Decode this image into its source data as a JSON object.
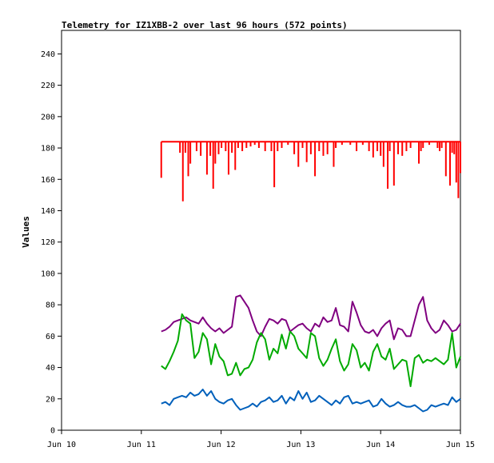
{
  "chart_data": {
    "type": "line",
    "title": "Telemetry for IZ1XBB-2 over last 96 hours (572 points)",
    "xlabel": "",
    "ylabel": "Values",
    "x_ticks": [
      "Jun 10",
      "Jun 11",
      "Jun 12",
      "Jun 13",
      "Jun 14",
      "Jun 15"
    ],
    "xlim": [
      0,
      96
    ],
    "y_ticks": [
      0,
      20,
      40,
      60,
      80,
      100,
      120,
      140,
      160,
      180,
      200,
      220,
      240
    ],
    "ylim": [
      0,
      255
    ],
    "grid": false,
    "legend": "none",
    "series": [
      {
        "color": "#ff0000",
        "style": "baseline-with-dips",
        "baseline": 184,
        "x_range": [
          24,
          96
        ],
        "dips": [
          [
            24.0,
            161
          ],
          [
            28.5,
            177
          ],
          [
            29.2,
            146
          ],
          [
            29.8,
            177
          ],
          [
            30.5,
            162
          ],
          [
            31.0,
            170
          ],
          [
            32.5,
            178
          ],
          [
            33.5,
            175
          ],
          [
            35.0,
            163
          ],
          [
            35.8,
            175
          ],
          [
            36.5,
            154
          ],
          [
            37.0,
            170
          ],
          [
            37.8,
            176
          ],
          [
            38.5,
            180
          ],
          [
            39.5,
            178
          ],
          [
            40.2,
            163
          ],
          [
            41.0,
            177
          ],
          [
            41.8,
            166
          ],
          [
            42.5,
            180
          ],
          [
            43.5,
            178
          ],
          [
            44.5,
            180
          ],
          [
            45.5,
            181
          ],
          [
            46.5,
            182
          ],
          [
            47.5,
            180
          ],
          [
            49.0,
            178
          ],
          [
            50.5,
            178
          ],
          [
            51.2,
            155
          ],
          [
            52.0,
            178
          ],
          [
            53.0,
            180
          ],
          [
            54.5,
            182
          ],
          [
            56.0,
            176
          ],
          [
            57.0,
            168
          ],
          [
            58.0,
            180
          ],
          [
            59.0,
            171
          ],
          [
            60.0,
            176
          ],
          [
            61.0,
            162
          ],
          [
            62.0,
            178
          ],
          [
            63.0,
            175
          ],
          [
            64.0,
            176
          ],
          [
            65.5,
            168
          ],
          [
            66.0,
            180
          ],
          [
            67.5,
            182
          ],
          [
            69.5,
            182
          ],
          [
            71.0,
            178
          ],
          [
            72.5,
            182
          ],
          [
            74.0,
            178
          ],
          [
            75.0,
            174
          ],
          [
            76.0,
            178
          ],
          [
            76.8,
            175
          ],
          [
            77.5,
            168
          ],
          [
            78.5,
            154
          ],
          [
            79.0,
            178
          ],
          [
            80.0,
            156
          ],
          [
            81.0,
            176
          ],
          [
            82.0,
            175
          ],
          [
            83.0,
            178
          ],
          [
            84.0,
            180
          ],
          [
            86.0,
            170
          ],
          [
            86.5,
            178
          ],
          [
            87.0,
            180
          ],
          [
            88.5,
            182
          ],
          [
            90.5,
            180
          ],
          [
            91.0,
            178
          ],
          [
            91.5,
            180
          ],
          [
            92.5,
            162
          ],
          [
            93.5,
            156
          ],
          [
            94.0,
            177
          ],
          [
            94.5,
            176
          ],
          [
            95.0,
            158
          ],
          [
            95.5,
            148
          ],
          [
            96.0,
            164
          ]
        ]
      },
      {
        "color": "#800080",
        "x": [
          24,
          25,
          26,
          27,
          28,
          29,
          30,
          31,
          32,
          33,
          34,
          35,
          36,
          37,
          38,
          39,
          40,
          41,
          42,
          43,
          44,
          45,
          46,
          47,
          48,
          49,
          50,
          51,
          52,
          53,
          54,
          55,
          56,
          57,
          58,
          59,
          60,
          61,
          62,
          63,
          64,
          65,
          66,
          67,
          68,
          69,
          70,
          71,
          72,
          73,
          74,
          75,
          76,
          77,
          78,
          79,
          80,
          81,
          82,
          83,
          84,
          85,
          86,
          87,
          88,
          89,
          90,
          91,
          92,
          93,
          94,
          95,
          96
        ],
        "values": [
          63,
          64,
          66,
          69,
          70,
          71,
          72,
          70,
          69,
          68,
          72,
          68,
          65,
          63,
          65,
          62,
          64,
          66,
          85,
          86,
          82,
          78,
          70,
          63,
          60,
          66,
          71,
          70,
          68,
          71,
          70,
          63,
          65,
          67,
          68,
          65,
          63,
          68,
          66,
          72,
          69,
          70,
          78,
          67,
          66,
          63,
          82,
          75,
          67,
          63,
          62,
          64,
          60,
          65,
          68,
          70,
          58,
          65,
          64,
          60,
          60,
          70,
          80,
          85,
          70,
          65,
          62,
          64,
          70,
          67,
          63,
          64,
          68
        ]
      },
      {
        "color": "#00aa00",
        "x": [
          24,
          25,
          26,
          27,
          28,
          29,
          30,
          31,
          32,
          33,
          34,
          35,
          36,
          37,
          38,
          39,
          40,
          41,
          42,
          43,
          44,
          45,
          46,
          47,
          48,
          49,
          50,
          51,
          52,
          53,
          54,
          55,
          56,
          57,
          58,
          59,
          60,
          61,
          62,
          63,
          64,
          65,
          66,
          67,
          68,
          69,
          70,
          71,
          72,
          73,
          74,
          75,
          76,
          77,
          78,
          79,
          80,
          81,
          82,
          83,
          84,
          85,
          86,
          87,
          88,
          89,
          90,
          91,
          92,
          93,
          94,
          95,
          96
        ],
        "values": [
          41,
          39,
          44,
          50,
          57,
          74,
          70,
          68,
          46,
          50,
          62,
          58,
          42,
          55,
          47,
          44,
          35,
          36,
          43,
          35,
          39,
          40,
          45,
          56,
          62,
          58,
          45,
          52,
          49,
          61,
          52,
          63,
          60,
          52,
          49,
          46,
          62,
          60,
          46,
          41,
          45,
          52,
          58,
          44,
          38,
          42,
          55,
          51,
          40,
          43,
          38,
          50,
          55,
          47,
          45,
          52,
          39,
          42,
          45,
          44,
          28,
          46,
          48,
          43,
          45,
          44,
          46,
          44,
          42,
          45,
          62,
          40,
          47
        ]
      },
      {
        "color": "#0060bb",
        "x": [
          24,
          25,
          26,
          27,
          28,
          29,
          30,
          31,
          32,
          33,
          34,
          35,
          36,
          37,
          38,
          39,
          40,
          41,
          42,
          43,
          44,
          45,
          46,
          47,
          48,
          49,
          50,
          51,
          52,
          53,
          54,
          55,
          56,
          57,
          58,
          59,
          60,
          61,
          62,
          63,
          64,
          65,
          66,
          67,
          68,
          69,
          70,
          71,
          72,
          73,
          74,
          75,
          76,
          77,
          78,
          79,
          80,
          81,
          82,
          83,
          84,
          85,
          86,
          87,
          88,
          89,
          90,
          91,
          92,
          93,
          94,
          95,
          96
        ],
        "values": [
          17,
          18,
          16,
          20,
          21,
          22,
          21,
          24,
          22,
          23,
          26,
          22,
          25,
          20,
          18,
          17,
          19,
          20,
          16,
          13,
          14,
          15,
          17,
          15,
          18,
          19,
          21,
          18,
          19,
          22,
          17,
          21,
          19,
          25,
          20,
          24,
          18,
          19,
          22,
          20,
          18,
          16,
          19,
          17,
          21,
          22,
          17,
          18,
          17,
          18,
          19,
          15,
          16,
          20,
          17,
          15,
          16,
          18,
          16,
          15,
          15,
          16,
          14,
          12,
          13,
          16,
          15,
          16,
          17,
          16,
          21,
          18,
          20
        ]
      }
    ]
  }
}
